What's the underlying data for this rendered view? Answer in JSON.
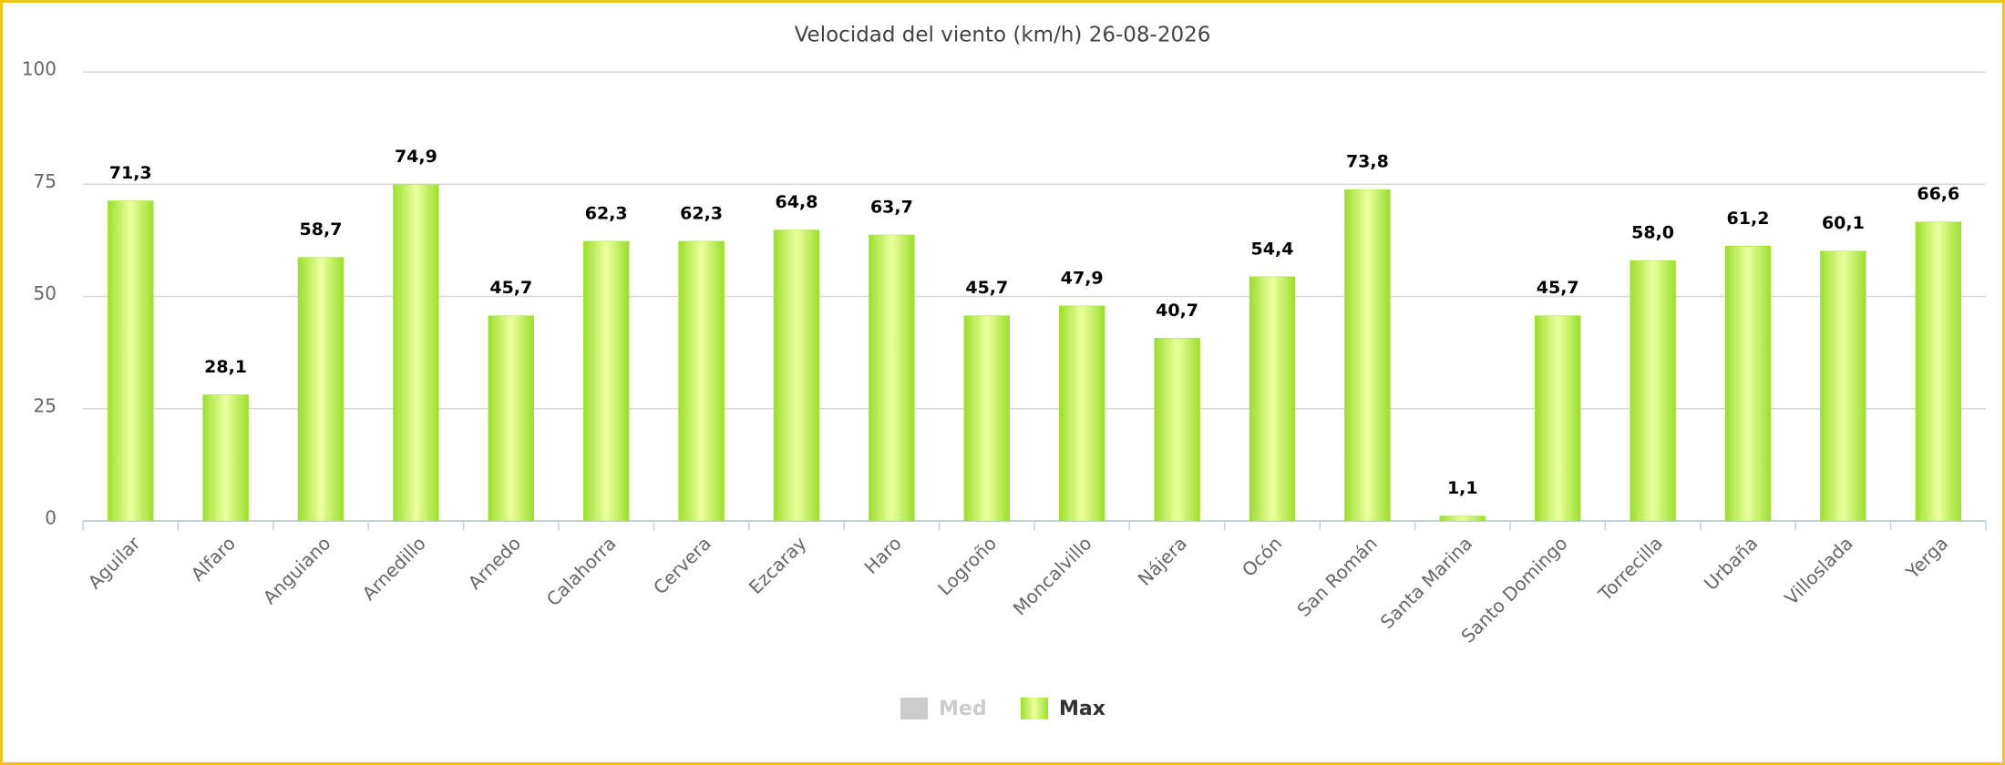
{
  "chart_data": {
    "type": "bar",
    "title": "Velocidad del viento (km/h) 26-08-2026",
    "categories": [
      "Aguilar",
      "Alfaro",
      "Anguiano",
      "Arnedillo",
      "Arnedo",
      "Calahorra",
      "Cervera",
      "Ezcaray",
      "Haro",
      "Logroño",
      "Moncalvillo",
      "Nájera",
      "Ocón",
      "San Román",
      "Santa Marina",
      "Santo Domingo",
      "Torrecilla",
      "Urbaña",
      "Villoslada",
      "Yerga"
    ],
    "series": [
      {
        "name": "Med",
        "color": "#cccccc",
        "visible": false,
        "values": [
          null,
          null,
          null,
          null,
          null,
          null,
          null,
          null,
          null,
          null,
          null,
          null,
          null,
          null,
          null,
          null,
          null,
          null,
          null,
          null
        ]
      },
      {
        "name": "Max",
        "color": "#a8e33c",
        "visible": true,
        "values": [
          71.3,
          28.1,
          58.7,
          74.9,
          45.7,
          62.3,
          62.3,
          64.8,
          63.7,
          45.7,
          47.9,
          40.7,
          54.4,
          73.8,
          1.1,
          45.7,
          58.0,
          61.2,
          60.1,
          66.6
        ],
        "value_labels": [
          "71,3",
          "28,1",
          "58,7",
          "74,9",
          "45,7",
          "62,3",
          "62,3",
          "64,8",
          "63,7",
          "45,7",
          "47,9",
          "40,7",
          "54,4",
          "73,8",
          "1,1",
          "45,7",
          "58,0",
          "61,2",
          "60,1",
          "66,6"
        ]
      }
    ],
    "ylim": [
      0,
      100
    ],
    "yticks": [
      0,
      25,
      50,
      75,
      100
    ],
    "grid": true
  }
}
